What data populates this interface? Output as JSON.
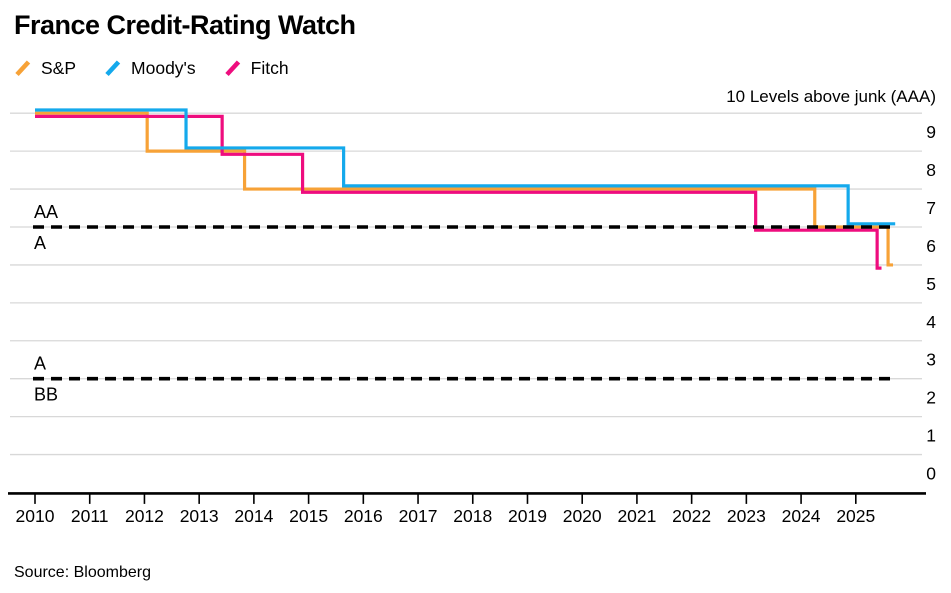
{
  "title": "France Credit-Rating Watch",
  "source": "Source: Bloomberg",
  "legend": [
    {
      "label": "S&P",
      "color": "#F7A237"
    },
    {
      "label": "Moody's",
      "color": "#14A9EC"
    },
    {
      "label": "Fitch",
      "color": "#EE0D7E"
    }
  ],
  "chart_data": {
    "type": "line",
    "subtype": "step",
    "title": "France Credit-Rating Watch",
    "axis_title": "10 Levels above junk (AAA)",
    "xlabel": "",
    "ylabel": "",
    "grid": "horizontal",
    "legend_position": "top-left",
    "ylim": [
      0,
      10
    ],
    "xlim": [
      2010,
      2026.2
    ],
    "x_ticks": [
      2010,
      2011,
      2012,
      2013,
      2014,
      2015,
      2016,
      2017,
      2018,
      2019,
      2020,
      2021,
      2022,
      2023,
      2024,
      2025
    ],
    "y_ticks": [
      9,
      8,
      7,
      6,
      5,
      4,
      3,
      2,
      1,
      0
    ],
    "grid_levels": [
      10,
      9,
      8,
      7,
      6,
      5,
      4,
      3,
      2,
      1
    ],
    "boundaries": [
      {
        "level": 7,
        "label_above": "AA",
        "label_below": "A"
      },
      {
        "level": 3,
        "label_above": "A",
        "label_below": "BB"
      }
    ],
    "series": [
      {
        "name": "S&P",
        "color": "#F7A237",
        "offset": 0,
        "points": [
          [
            2010,
            10
          ],
          [
            2012.05,
            10
          ],
          [
            2012.05,
            9
          ],
          [
            2013.83,
            9
          ],
          [
            2013.83,
            8
          ],
          [
            2024.25,
            8
          ],
          [
            2024.25,
            7
          ],
          [
            2025.59,
            7
          ],
          [
            2025.59,
            6
          ],
          [
            2025.68,
            6
          ]
        ]
      },
      {
        "name": "Fitch",
        "color": "#EE0D7E",
        "offset": 3.2,
        "points": [
          [
            2010,
            10
          ],
          [
            2013.42,
            10
          ],
          [
            2013.42,
            9
          ],
          [
            2014.89,
            9
          ],
          [
            2014.89,
            8
          ],
          [
            2023.17,
            8
          ],
          [
            2023.17,
            7
          ],
          [
            2025.39,
            7
          ],
          [
            2025.39,
            6
          ],
          [
            2025.47,
            6
          ]
        ]
      },
      {
        "name": "Moody's",
        "color": "#14A9EC",
        "offset": -3.2,
        "points": [
          [
            2010,
            10
          ],
          [
            2012.76,
            10
          ],
          [
            2012.76,
            9
          ],
          [
            2015.64,
            9
          ],
          [
            2015.64,
            8
          ],
          [
            2024.86,
            8
          ],
          [
            2024.86,
            7
          ],
          [
            2025.72,
            7
          ]
        ]
      }
    ]
  }
}
